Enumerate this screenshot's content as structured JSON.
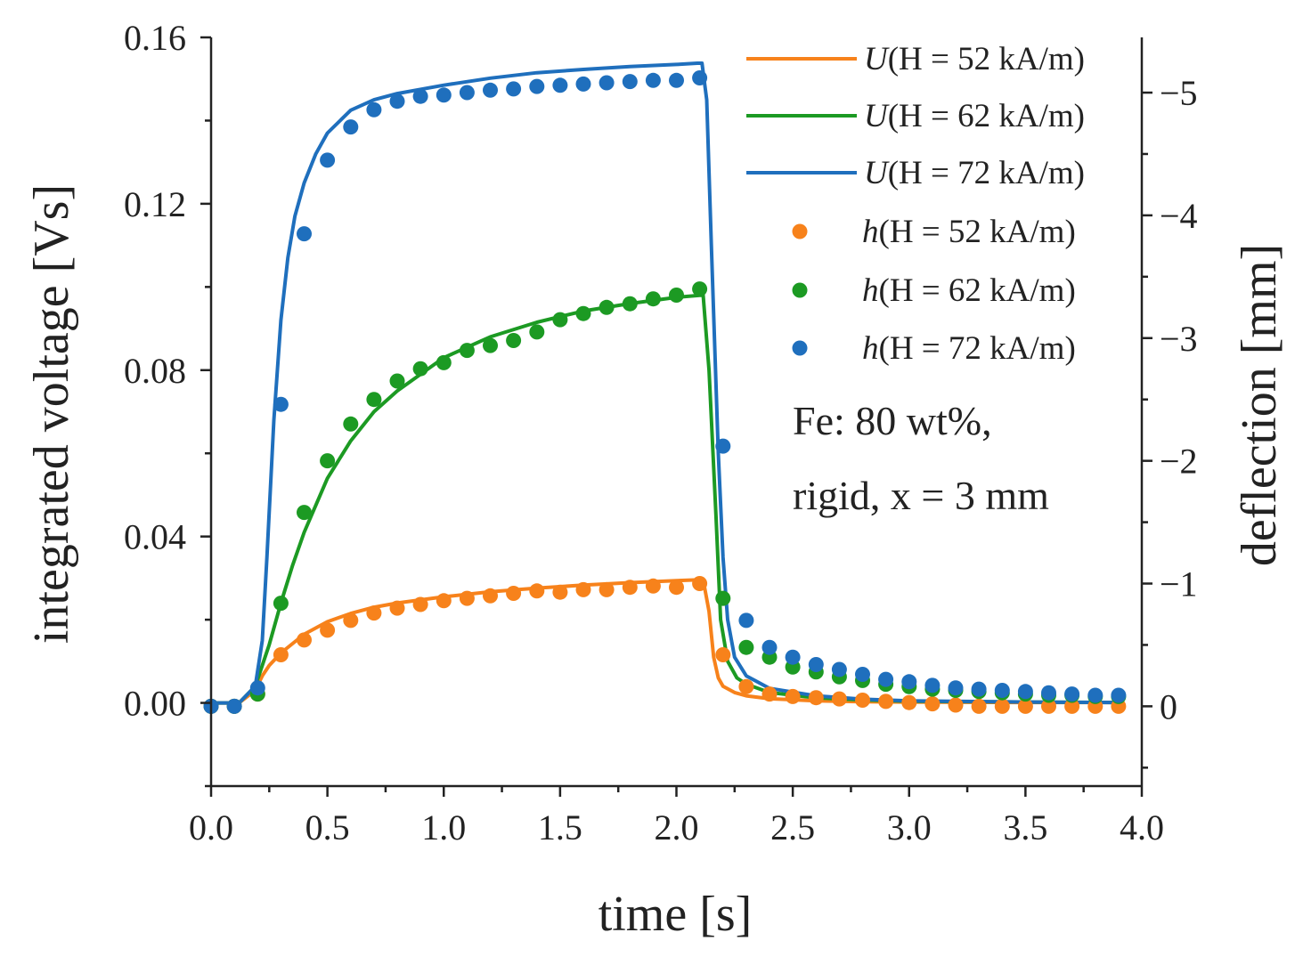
{
  "chart_data": {
    "type": "line",
    "title": "",
    "xlabel": "time [s]",
    "ylabel": "integrated voltage [Vs]",
    "y2label": "deflection [mm]",
    "xlim": [
      0.0,
      4.0
    ],
    "ylim": [
      -0.02,
      0.16
    ],
    "y2lim": [
      0.65,
      -5.45
    ],
    "xticks": [
      "0.0",
      "0.5",
      "1.0",
      "1.5",
      "2.0",
      "2.5",
      "3.0",
      "3.5",
      "4.0"
    ],
    "yticks": [
      "0.00",
      "0.04",
      "0.08",
      "0.12",
      "0.16"
    ],
    "y2ticks": [
      "−5",
      "−4",
      "−3",
      "−2",
      "−1",
      "0"
    ],
    "grid": false,
    "legend_position": "top-right",
    "legend": [
      {
        "kind": "line",
        "prefix": "U",
        "label": "(H = 52 kA/m)",
        "color": "#f7821b"
      },
      {
        "kind": "line",
        "prefix": "U",
        "label": "(H = 62 kA/m)",
        "color": "#1c9a23"
      },
      {
        "kind": "line",
        "prefix": "U",
        "label": "(H = 72 kA/m)",
        "color": "#1f6fbd"
      },
      {
        "kind": "marker",
        "prefix": "h",
        "label": "(H = 52 kA/m)",
        "color": "#f7821b"
      },
      {
        "kind": "marker",
        "prefix": "h",
        "label": "(H = 62 kA/m)",
        "color": "#1c9a23"
      },
      {
        "kind": "marker",
        "prefix": "h",
        "label": "(H = 72 kA/m)",
        "color": "#1f6fbd"
      }
    ],
    "annotation": [
      "Fe: 80 wt%,",
      "rigid, x = 3 mm"
    ],
    "series": [
      {
        "name": "U(H = 52 kA/m)",
        "kind": "line",
        "color": "#f7821b",
        "x": [
          0.0,
          0.12,
          0.19,
          0.22,
          0.25,
          0.3,
          0.4,
          0.5,
          0.6,
          0.7,
          0.8,
          1.0,
          1.2,
          1.4,
          1.6,
          1.8,
          2.0,
          2.1,
          2.115,
          2.14,
          2.16,
          2.18,
          2.2,
          2.25,
          2.3,
          2.4,
          2.6,
          2.8,
          3.0,
          3.5,
          3.9
        ],
        "y": [
          0.0,
          0.0,
          0.003,
          0.0065,
          0.009,
          0.012,
          0.0165,
          0.0195,
          0.0215,
          0.023,
          0.024,
          0.0255,
          0.0267,
          0.0276,
          0.0283,
          0.0289,
          0.0294,
          0.0296,
          0.0296,
          0.022,
          0.011,
          0.006,
          0.004,
          0.0025,
          0.0017,
          0.001,
          0.0005,
          0.0003,
          0.0002,
          0.0001,
          0.0001
        ]
      },
      {
        "name": "U(H = 62 kA/m)",
        "kind": "line",
        "color": "#1c9a23",
        "x": [
          0.0,
          0.12,
          0.19,
          0.22,
          0.25,
          0.3,
          0.35,
          0.4,
          0.5,
          0.6,
          0.7,
          0.8,
          1.0,
          1.2,
          1.4,
          1.6,
          1.8,
          2.0,
          2.1,
          2.115,
          2.14,
          2.17,
          2.19,
          2.22,
          2.26,
          2.3,
          2.4,
          2.6,
          2.8,
          3.0,
          3.5,
          3.9
        ],
        "y": [
          0.0,
          0.0,
          0.004,
          0.009,
          0.014,
          0.024,
          0.033,
          0.041,
          0.054,
          0.063,
          0.07,
          0.075,
          0.083,
          0.088,
          0.0915,
          0.0942,
          0.096,
          0.0975,
          0.098,
          0.098,
          0.08,
          0.045,
          0.02,
          0.01,
          0.006,
          0.0045,
          0.0025,
          0.0012,
          0.0007,
          0.0004,
          0.0002,
          0.0001
        ]
      },
      {
        "name": "U(H = 72 kA/m)",
        "kind": "line",
        "color": "#1f6fbd",
        "x": [
          0.0,
          0.12,
          0.19,
          0.22,
          0.24,
          0.27,
          0.3,
          0.33,
          0.36,
          0.4,
          0.45,
          0.5,
          0.6,
          0.7,
          0.8,
          1.0,
          1.2,
          1.4,
          1.6,
          1.8,
          2.0,
          2.09,
          2.11,
          2.13,
          2.15,
          2.18,
          2.2,
          2.22,
          2.25,
          2.3,
          2.4,
          2.6,
          2.8,
          3.0,
          3.5,
          3.9
        ],
        "y": [
          0.0,
          0.0,
          0.004,
          0.015,
          0.035,
          0.068,
          0.092,
          0.107,
          0.117,
          0.125,
          0.132,
          0.137,
          0.1425,
          0.145,
          0.1465,
          0.1485,
          0.1502,
          0.1515,
          0.1523,
          0.153,
          0.1535,
          0.1538,
          0.1538,
          0.145,
          0.11,
          0.06,
          0.035,
          0.02,
          0.011,
          0.0065,
          0.0035,
          0.0017,
          0.0009,
          0.0005,
          0.0002,
          0.0001
        ]
      },
      {
        "name": "h(H = 52 kA/m)",
        "kind": "marker",
        "color": "#f7821b",
        "x": [
          0.0,
          0.1,
          0.2,
          0.3,
          0.4,
          0.5,
          0.6,
          0.7,
          0.8,
          0.9,
          1.0,
          1.1,
          1.2,
          1.3,
          1.4,
          1.5,
          1.6,
          1.7,
          1.8,
          1.9,
          2.0,
          2.1,
          2.2,
          2.3,
          2.4,
          2.5,
          2.6,
          2.7,
          2.8,
          2.9,
          3.0,
          3.1,
          3.2,
          3.3,
          3.4,
          3.5,
          3.6,
          3.7,
          3.8,
          3.9
        ],
        "y": [
          0.0,
          0.0,
          -0.1,
          -0.42,
          -0.54,
          -0.62,
          -0.7,
          -0.76,
          -0.8,
          -0.83,
          -0.86,
          -0.88,
          -0.9,
          -0.92,
          -0.94,
          -0.93,
          -0.95,
          -0.95,
          -0.97,
          -0.98,
          -0.97,
          -1.0,
          -0.42,
          -0.16,
          -0.1,
          -0.08,
          -0.07,
          -0.06,
          -0.05,
          -0.04,
          -0.03,
          -0.02,
          -0.01,
          0.0,
          0.0,
          0.0,
          0.0,
          0.0,
          0.0,
          0.0
        ]
      },
      {
        "name": "h(H = 62 kA/m)",
        "kind": "marker",
        "color": "#1c9a23",
        "x": [
          0.0,
          0.1,
          0.2,
          0.3,
          0.4,
          0.5,
          0.6,
          0.7,
          0.8,
          0.9,
          1.0,
          1.1,
          1.2,
          1.3,
          1.4,
          1.5,
          1.6,
          1.7,
          1.8,
          1.9,
          2.0,
          2.1,
          2.2,
          2.3,
          2.4,
          2.5,
          2.6,
          2.7,
          2.8,
          2.9,
          3.0,
          3.1,
          3.2,
          3.3,
          3.4,
          3.5,
          3.6,
          3.7,
          3.8,
          3.9
        ],
        "y": [
          0.0,
          0.0,
          -0.1,
          -0.84,
          -1.58,
          -2.0,
          -2.3,
          -2.5,
          -2.65,
          -2.75,
          -2.8,
          -2.9,
          -2.94,
          -2.98,
          -3.05,
          -3.15,
          -3.2,
          -3.25,
          -3.28,
          -3.32,
          -3.35,
          -3.4,
          -0.88,
          -0.48,
          -0.4,
          -0.32,
          -0.28,
          -0.24,
          -0.21,
          -0.18,
          -0.16,
          -0.14,
          -0.13,
          -0.12,
          -0.11,
          -0.1,
          -0.09,
          -0.09,
          -0.08,
          -0.08
        ]
      },
      {
        "name": "h(H = 72 kA/m)",
        "kind": "marker",
        "color": "#1f6fbd",
        "x": [
          0.0,
          0.1,
          0.2,
          0.3,
          0.4,
          0.5,
          0.6,
          0.7,
          0.8,
          0.9,
          1.0,
          1.1,
          1.2,
          1.3,
          1.4,
          1.5,
          1.6,
          1.7,
          1.8,
          1.9,
          2.0,
          2.1,
          2.2,
          2.3,
          2.4,
          2.5,
          2.6,
          2.7,
          2.8,
          2.9,
          3.0,
          3.1,
          3.2,
          3.3,
          3.4,
          3.5,
          3.6,
          3.7,
          3.8,
          3.9
        ],
        "y": [
          0.0,
          0.0,
          -0.15,
          -2.46,
          -3.85,
          -4.45,
          -4.72,
          -4.86,
          -4.93,
          -4.97,
          -4.98,
          -5.0,
          -5.02,
          -5.03,
          -5.05,
          -5.06,
          -5.07,
          -5.08,
          -5.09,
          -5.1,
          -5.1,
          -5.12,
          -2.12,
          -0.7,
          -0.48,
          -0.4,
          -0.34,
          -0.3,
          -0.26,
          -0.22,
          -0.2,
          -0.17,
          -0.15,
          -0.14,
          -0.13,
          -0.12,
          -0.11,
          -0.1,
          -0.09,
          -0.09
        ]
      }
    ]
  }
}
